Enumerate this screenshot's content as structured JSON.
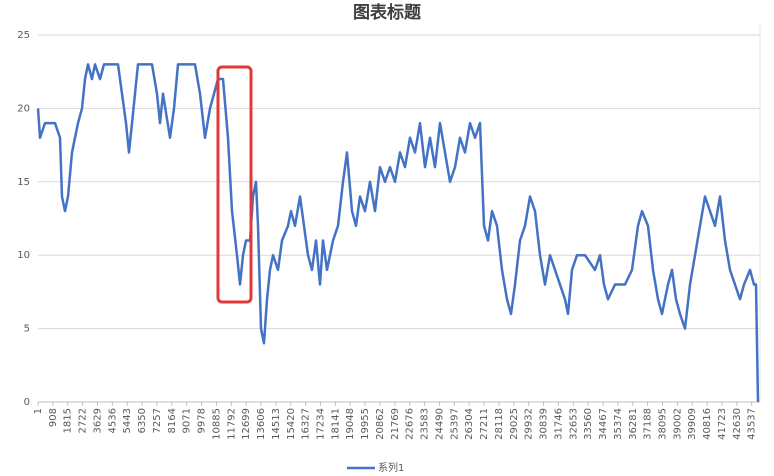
{
  "chart_data": {
    "type": "line",
    "title": "图表标题",
    "x": [
      1,
      123,
      428,
      1038,
      1343,
      1465,
      1648,
      1831,
      2075,
      2258,
      2441,
      2685,
      2868,
      3051,
      3295,
      3478,
      3783,
      4027,
      4881,
      5125,
      5369,
      5552,
      5735,
      5918,
      6101,
      6955,
      7260,
      7443,
      7626,
      8053,
      8297,
      8541,
      9578,
      9883,
      10188,
      10493,
      10737,
      10981,
      11286,
      11591,
      11835,
      12140,
      12323,
      12506,
      12689,
      12933,
      13116,
      13299,
      13421,
      13604,
      13787,
      13970,
      14153,
      14336,
      14641,
      14885,
      15251,
      15434,
      15678,
      15983,
      16227,
      16471,
      16715,
      16959,
      17203,
      17386,
      17630,
      17996,
      18301,
      18606,
      18850,
      19155,
      19399,
      19643,
      19948,
      20253,
      20558,
      20863,
      21168,
      21473,
      21778,
      22083,
      22388,
      22693,
      22998,
      23303,
      23608,
      23913,
      24218,
      24523,
      24828,
      25133,
      25438,
      25743,
      26048,
      26353,
      26658,
      26963,
      27207,
      27451,
      27695,
      28000,
      28305,
      28610,
      28854,
      29098,
      29403,
      29708,
      30013,
      30318,
      30623,
      30928,
      31233,
      31538,
      31843,
      32148,
      32331,
      32575,
      32880,
      33368,
      33978,
      34283,
      34527,
      34771,
      35198,
      35808,
      36235,
      36601,
      36845,
      37211,
      37516,
      37821,
      38065,
      38431,
      38675,
      38919,
      39163,
      39468,
      39773,
      40078,
      40383,
      40688,
      40993,
      41298,
      41603,
      41908,
      42213,
      42518,
      42823,
      43067,
      43433,
      43677,
      43799,
      43921
    ],
    "series": [
      {
        "name": "系列1",
        "color": "#4472c4",
        "values": [
          20,
          18,
          19,
          19,
          18,
          14,
          13,
          14,
          17,
          18,
          19,
          20,
          22,
          23,
          22,
          23,
          22,
          23,
          23,
          21,
          19,
          17,
          19,
          21,
          23,
          23,
          21,
          19,
          21,
          18,
          20,
          23,
          23,
          21,
          18,
          20,
          21,
          22,
          22,
          18,
          13,
          10,
          8,
          10,
          11,
          11,
          14,
          15,
          12,
          5,
          4,
          7,
          9,
          10,
          9,
          11,
          12,
          13,
          12,
          14,
          12,
          10,
          9,
          11,
          8,
          11,
          9,
          11,
          12,
          15,
          17,
          13,
          12,
          14,
          13,
          15,
          13,
          16,
          15,
          16,
          15,
          17,
          16,
          18,
          17,
          19,
          16,
          18,
          16,
          19,
          17,
          15,
          16,
          18,
          17,
          19,
          18,
          19,
          12,
          11,
          13,
          12,
          9,
          7,
          6,
          8,
          11,
          12,
          14,
          13,
          10,
          8,
          10,
          9,
          8,
          7,
          6,
          9,
          10,
          10,
          9,
          10,
          8,
          7,
          8,
          8,
          9,
          12,
          13,
          12,
          9,
          7,
          6,
          8,
          9,
          7,
          6,
          5,
          8,
          10,
          12,
          14,
          13,
          12,
          14,
          11,
          9,
          8,
          7,
          8,
          9,
          8,
          8,
          0
        ]
      }
    ],
    "xlim": [
      1,
      44043
    ],
    "xticks": [
      1,
      908,
      1815,
      2722,
      3629,
      4536,
      5443,
      6350,
      7257,
      8164,
      9071,
      9978,
      10885,
      11792,
      12699,
      13606,
      14513,
      15420,
      16327,
      17234,
      18141,
      19048,
      19955,
      20862,
      21769,
      22676,
      23583,
      24490,
      25397,
      26304,
      27211,
      28118,
      29025,
      29932,
      30839,
      31746,
      32653,
      33560,
      34467,
      35374,
      36281,
      37188,
      38095,
      39002,
      39909,
      40816,
      41723,
      42630,
      43537
    ],
    "ylim": [
      0,
      25
    ],
    "yticks": [
      0,
      5,
      10,
      15,
      20,
      25
    ],
    "grid": true,
    "legend": "bottom"
  }
}
